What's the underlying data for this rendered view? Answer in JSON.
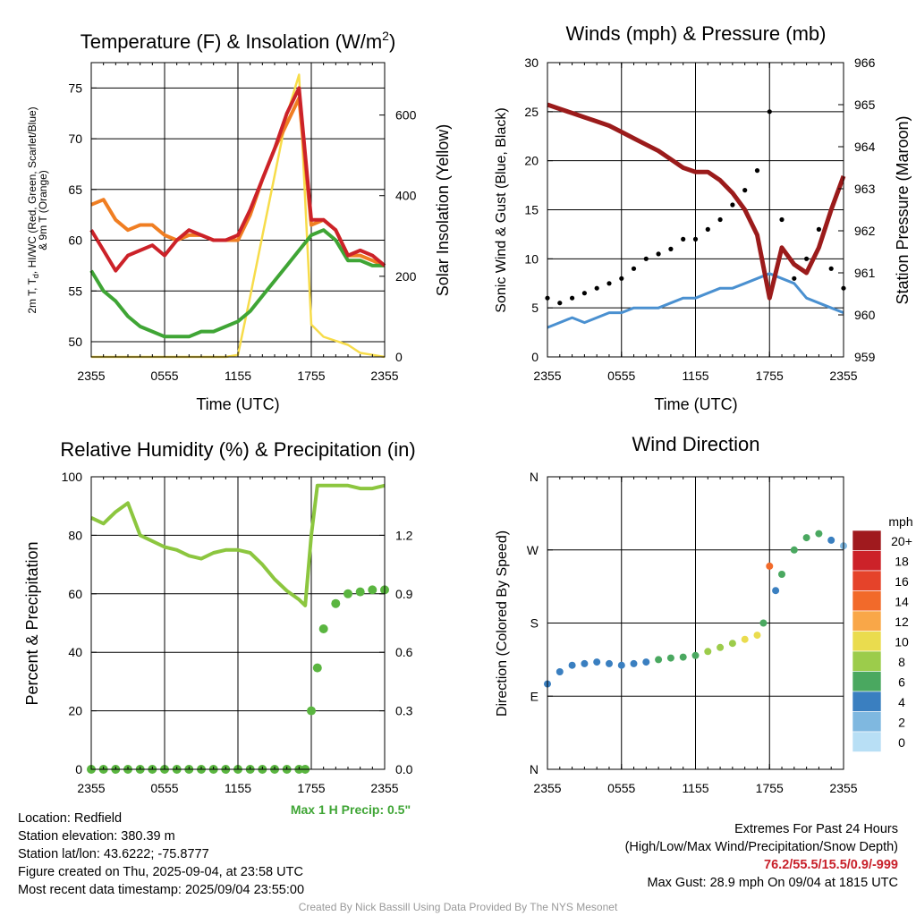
{
  "panels": {
    "temp": {
      "title_main": "Temperature (F) & Insolation (W/m",
      "title_sup": "2",
      "title_close": ")",
      "ylabel_lines": [
        "2m T, T",
        "d",
        ", HI/WC (Red, Green, Scarlet/Blue)",
        "& 9m T (Orange)"
      ],
      "y2label": "Solar Insolation (Yellow)",
      "xlabel": "Time (UTC)"
    },
    "wind": {
      "title": "Winds (mph) & Pressure (mb)",
      "ylabel": "Sonic Wind & Gust (Blue, Black)",
      "y2label": "Station Pressure (Maroon)",
      "xlabel": "Time (UTC)"
    },
    "rh": {
      "title": "Relative Humidity (%) & Precipitation (in)",
      "ylabel": "Percent & Precipitation",
      "max_precip_label": "Max 1 H Precip: 0.5\""
    },
    "dir": {
      "title": "Wind Direction",
      "ylabel": "Direction (Colored By Speed)",
      "colorbar_title": "mph"
    }
  },
  "x_tick_labels": [
    "2355",
    "0555",
    "1155",
    "1755",
    "2355"
  ],
  "colors": {
    "temp_red": "#cc2229",
    "dewpoint_green": "#3fa535",
    "nine_m_orange": "#f07e22",
    "insolation_yellow": "#f7dc4a",
    "wind_blue": "#4a90d0",
    "gust_black": "#000000",
    "pressure_maroon": "#9b1b1b",
    "rh_lightgreen": "#8cc63f",
    "precip_green": "#5ab540",
    "extremes_red": "#c8202a"
  },
  "colorbar": {
    "labels": [
      "20+",
      "18",
      "16",
      "14",
      "12",
      "10",
      "8",
      "6",
      "4",
      "2",
      "0"
    ],
    "colors": [
      "#a01a1e",
      "#cc2229",
      "#e5432a",
      "#f26a2a",
      "#f9a748",
      "#eadc4e",
      "#9ccc4b",
      "#4aa860",
      "#3a7fc0",
      "#7fb8e0",
      "#b8dff5"
    ]
  },
  "info": {
    "location": "Location: Redfield",
    "elevation": "Station elevation: 380.39 m",
    "latlon": "Station lat/lon: 43.6222; -75.8777",
    "created": "Figure created on Thu, 2025-09-04, at 23:58 UTC",
    "recent": "Most recent data timestamp: 2025/09/04 23:55:00",
    "extremes_title": "Extremes For Past 24 Hours",
    "extremes_legend": "(High/Low/Max Wind/Precipitation/Snow Depth)",
    "extremes_values": "76.2/55.5/15.5/0.9/-999",
    "max_gust": "Max Gust: 28.9 mph On 09/04 at 1815 UTC",
    "credit": "Created By Nick Bassill Using Data Provided By The NYS Mesonet"
  },
  "chart_data": [
    {
      "type": "line",
      "title": "Temperature (F) & Insolation (W/m2)",
      "xlabel": "Time (UTC)",
      "ylabel": "2m T, Td, HI/WC (Red, Green, Scarlet/Blue) & 9m T (Orange)",
      "y2label": "Solar Insolation (Yellow)",
      "x_ticks": [
        "2355",
        "0555",
        "1155",
        "1755",
        "2355"
      ],
      "x_hours": [
        0,
        1,
        2,
        3,
        4,
        5,
        6,
        7,
        8,
        9,
        10,
        11,
        12,
        13,
        14,
        15,
        16,
        17,
        18,
        19,
        20,
        21,
        22,
        23,
        24
      ],
      "ylim": [
        48.5,
        77.5
      ],
      "y_ticks": [
        50,
        55,
        60,
        65,
        70,
        75
      ],
      "y2lim": [
        0,
        730
      ],
      "y2_ticks": [
        0,
        200,
        400,
        600
      ],
      "grid": true,
      "series": [
        {
          "name": "2m T",
          "axis": "left",
          "values": [
            61,
            59,
            57,
            58.5,
            59,
            59.5,
            58.5,
            60,
            61,
            60.5,
            60,
            60,
            60.5,
            63,
            66,
            69,
            72.5,
            75,
            62,
            62,
            61,
            58.5,
            59,
            58.5,
            57.5
          ]
        },
        {
          "name": "9m T",
          "axis": "left",
          "values": [
            63.5,
            64,
            62,
            61,
            61.5,
            61.5,
            60.5,
            60,
            60.5,
            60.5,
            60,
            60,
            60,
            62.5,
            66,
            69,
            71.5,
            74,
            61.5,
            62,
            61,
            58.5,
            58.5,
            58,
            57.5
          ]
        },
        {
          "name": "Td",
          "axis": "left",
          "values": [
            57,
            55,
            54,
            52.5,
            51.5,
            51,
            50.5,
            50.5,
            50.5,
            51,
            51,
            51.5,
            52,
            53,
            54.5,
            56,
            57.5,
            59,
            60.5,
            61,
            60,
            58,
            58,
            57.5,
            57.5
          ]
        },
        {
          "name": "Insolation",
          "axis": "right",
          "values": [
            0,
            0,
            0,
            0,
            0,
            0,
            0,
            0,
            0,
            0,
            0,
            0,
            5,
            150,
            300,
            450,
            600,
            700,
            80,
            50,
            40,
            30,
            10,
            5,
            0
          ]
        }
      ]
    },
    {
      "type": "line",
      "title": "Winds (mph) & Pressure (mb)",
      "xlabel": "Time (UTC)",
      "ylabel": "Sonic Wind & Gust (Blue, Black)",
      "y2label": "Station Pressure (Maroon)",
      "x_ticks": [
        "2355",
        "0555",
        "1155",
        "1755",
        "2355"
      ],
      "x_hours": [
        0,
        1,
        2,
        3,
        4,
        5,
        6,
        7,
        8,
        9,
        10,
        11,
        12,
        13,
        14,
        15,
        16,
        17,
        18,
        19,
        20,
        21,
        22,
        23,
        24
      ],
      "ylim": [
        0,
        30
      ],
      "y_ticks": [
        0,
        5,
        10,
        15,
        20,
        25,
        30
      ],
      "y2lim": [
        959,
        966
      ],
      "y2_ticks": [
        959,
        960,
        961,
        962,
        963,
        964,
        965,
        966
      ],
      "grid": true,
      "series": [
        {
          "name": "Sonic Wind",
          "axis": "left",
          "values": [
            3,
            3.5,
            4,
            3.5,
            4,
            4.5,
            4.5,
            5,
            5,
            5,
            5.5,
            6,
            6,
            6.5,
            7,
            7,
            7.5,
            8,
            8.5,
            8,
            7.5,
            6,
            5.5,
            5,
            4.5
          ]
        },
        {
          "name": "Gust",
          "axis": "left",
          "values": [
            6,
            5.5,
            6,
            6.5,
            7,
            7.5,
            8,
            9,
            10,
            10.5,
            11,
            12,
            12,
            13,
            14,
            15.5,
            17,
            19,
            25,
            14,
            8,
            10,
            13,
            9,
            7
          ]
        },
        {
          "name": "Station Pressure",
          "axis": "right",
          "values": [
            965,
            964.9,
            964.8,
            964.7,
            964.6,
            964.5,
            964.35,
            964.2,
            964.05,
            963.9,
            963.7,
            963.5,
            963.4,
            963.4,
            963.2,
            962.9,
            962.5,
            961.9,
            960.4,
            961.6,
            961.2,
            961,
            961.6,
            962.5,
            963.3
          ]
        }
      ]
    },
    {
      "type": "line",
      "title": "Relative Humidity (%) & Precipitation (in)",
      "ylabel": "Percent & Precipitation",
      "x_ticks": [
        "2355",
        "0555",
        "1155",
        "1755",
        "2355"
      ],
      "x_hours": [
        0,
        1,
        2,
        3,
        4,
        5,
        6,
        7,
        8,
        9,
        10,
        11,
        12,
        13,
        14,
        15,
        16,
        17,
        17.5,
        18,
        18.5,
        19,
        20,
        21,
        22,
        23,
        24
      ],
      "ylim": [
        0,
        100
      ],
      "y_ticks": [
        0,
        20,
        40,
        60,
        80,
        100
      ],
      "y2lim": [
        0,
        1.5
      ],
      "y2_ticks": [
        0.0,
        0.3,
        0.6,
        0.9,
        1.2
      ],
      "grid": true,
      "series": [
        {
          "name": "Relative Humidity",
          "axis": "left",
          "values": [
            86,
            84,
            88,
            91,
            80,
            78,
            76,
            75,
            73,
            72,
            74,
            75,
            75,
            74,
            70,
            65,
            61,
            58,
            56,
            80,
            97,
            97,
            97,
            97,
            96,
            96,
            97
          ]
        },
        {
          "name": "Precipitation",
          "axis": "right",
          "values": [
            0,
            0,
            0,
            0,
            0,
            0,
            0,
            0,
            0,
            0,
            0,
            0,
            0,
            0,
            0,
            0,
            0,
            0,
            0,
            0.3,
            0.52,
            0.72,
            0.85,
            0.9,
            0.91,
            0.92,
            0.92
          ]
        }
      ]
    },
    {
      "type": "scatter",
      "title": "Wind Direction",
      "ylabel": "Direction (Colored By Speed)",
      "x_ticks": [
        "2355",
        "0555",
        "1155",
        "1755",
        "2355"
      ],
      "y_ticks": [
        "N",
        "E",
        "S",
        "W",
        "N"
      ],
      "y_tick_degrees": [
        0,
        90,
        180,
        270,
        360
      ],
      "ylim": [
        0,
        360
      ],
      "colorbar_units": "mph",
      "grid": true,
      "series": [
        {
          "name": "direction",
          "x_hours": [
            0,
            1,
            2,
            3,
            4,
            5,
            6,
            7,
            8,
            9,
            10,
            11,
            12,
            13,
            14,
            15,
            16,
            17,
            17.5,
            18,
            18.5,
            19,
            20,
            21,
            22,
            23,
            24
          ],
          "values": [
            105,
            120,
            128,
            130,
            132,
            130,
            128,
            130,
            132,
            135,
            137,
            138,
            140,
            145,
            150,
            155,
            160,
            165,
            180,
            250,
            220,
            240,
            270,
            285,
            290,
            282,
            275
          ],
          "speeds": [
            3,
            3,
            3,
            3,
            3,
            4,
            4,
            4,
            4,
            5,
            5,
            6,
            6,
            7,
            7,
            8,
            9,
            9,
            6,
            13,
            4,
            5,
            6,
            6,
            6,
            3,
            2
          ]
        }
      ]
    }
  ]
}
